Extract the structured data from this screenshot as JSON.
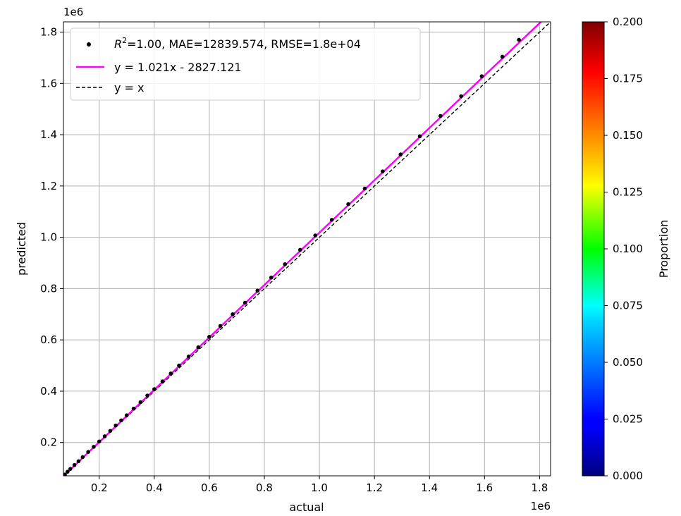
{
  "chart_data": {
    "type": "scatter",
    "xlabel": "actual",
    "ylabel": "predicted",
    "x_offset_label": "1e6",
    "y_offset_label": "1e6",
    "xlim": [
      70000,
      1840000
    ],
    "ylim": [
      70000,
      1840000
    ],
    "xticks": [
      200000,
      400000,
      600000,
      800000,
      1000000,
      1200000,
      1400000,
      1600000,
      1800000
    ],
    "yticks": [
      200000,
      400000,
      600000,
      800000,
      1000000,
      1200000,
      1400000,
      1600000,
      1800000
    ],
    "xtick_labels": [
      "0.2",
      "0.4",
      "0.6",
      "0.8",
      "1.0",
      "1.2",
      "1.4",
      "1.6",
      "1.8"
    ],
    "ytick_labels": [
      "0.2",
      "0.4",
      "0.6",
      "0.8",
      "1.0",
      "1.2",
      "1.4",
      "1.6",
      "1.8"
    ],
    "grid": true,
    "legend_position": "upper-left",
    "points": {
      "name": "R²=1.00, MAE=12839.574, RMSE=1.8e+04",
      "name_prefix": "R",
      "name_sup": "2",
      "name_rest": "=1.00, MAE=12839.574, RMSE=1.8e+04",
      "color": "#000000",
      "x": [
        75000,
        85000,
        95000,
        110000,
        125000,
        140000,
        160000,
        180000,
        200000,
        220000,
        240000,
        260000,
        280000,
        300000,
        325000,
        350000,
        375000,
        400000,
        430000,
        460000,
        490000,
        525000,
        560000,
        600000,
        640000,
        685000,
        730000,
        775000,
        825000,
        875000,
        930000,
        985000,
        1045000,
        1105000,
        1165000,
        1230000,
        1295000,
        1365000,
        1440000,
        1515000,
        1590000,
        1665000,
        1725000
      ],
      "y": [
        75000,
        86000,
        97000,
        112000,
        127000,
        143000,
        163000,
        183000,
        204000,
        224000,
        245000,
        266000,
        286000,
        306000,
        332000,
        357000,
        383000,
        408000,
        438000,
        469000,
        500000,
        535000,
        571000,
        612000,
        654000,
        700000,
        745000,
        792000,
        843000,
        895000,
        951000,
        1007000,
        1068000,
        1129000,
        1190000,
        1257000,
        1323000,
        1394000,
        1473000,
        1550000,
        1628000,
        1704000,
        1770000
      ]
    },
    "fit_line": {
      "label": "y = 1.021x - 2827.121",
      "slope": 1.021,
      "intercept": -2827.121,
      "color": "#ff00ff"
    },
    "identity_line": {
      "label": "y = x",
      "color": "#000000"
    },
    "colorbar": {
      "label": "Proportion",
      "range": [
        0.0,
        0.2
      ],
      "ticks": [
        0.0,
        0.025,
        0.05,
        0.075,
        0.1,
        0.125,
        0.15,
        0.175,
        0.2
      ],
      "tick_labels": [
        "0.000",
        "0.025",
        "0.050",
        "0.075",
        "0.100",
        "0.125",
        "0.150",
        "0.175",
        "0.200"
      ],
      "colormap": "jet"
    }
  }
}
